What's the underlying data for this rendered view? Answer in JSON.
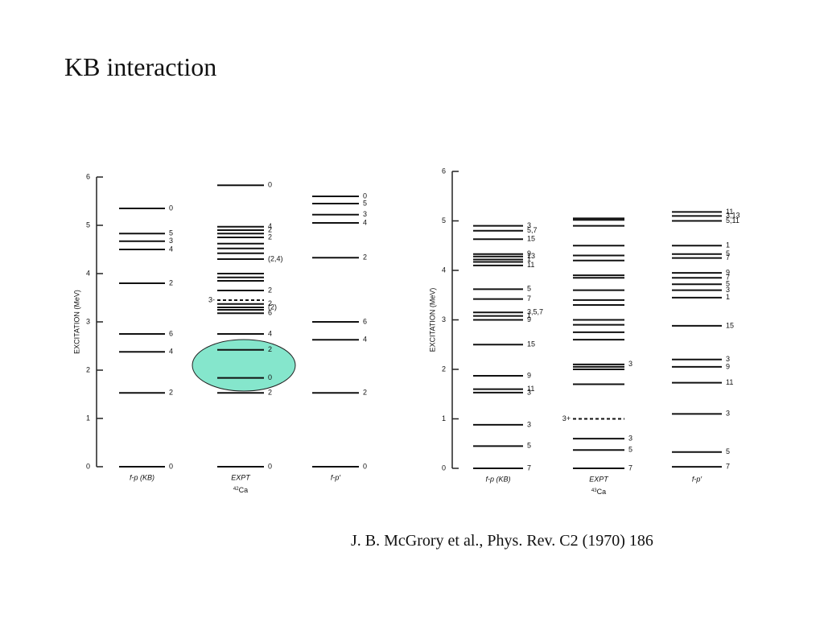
{
  "title": "KB interaction",
  "citation": "J. B. McGrory et al., Phys. Rev. C2 (1970) 186",
  "panels": [
    {
      "ylabel": "EXCITATION (MeV)",
      "ylim": [
        0,
        6
      ],
      "yticks": [
        0,
        1,
        2,
        3,
        4,
        5,
        6
      ],
      "nucleus": {
        "mass": "42",
        "symbol": "Ca"
      },
      "columns": [
        {
          "name": "f-p (KB)",
          "levels": [
            {
              "energy": 0,
              "label": "0"
            },
            {
              "energy": 1.53,
              "label": "2"
            },
            {
              "energy": 2.38,
              "label": "4"
            },
            {
              "energy": 2.75,
              "label": "6"
            },
            {
              "energy": 3.8,
              "label": "2"
            },
            {
              "energy": 4.5,
              "label": "4"
            },
            {
              "energy": 4.67,
              "label": "3"
            },
            {
              "energy": 4.83,
              "label": "5"
            },
            {
              "energy": 5.35,
              "label": "0"
            }
          ]
        },
        {
          "name": "EXPT",
          "levels": [
            {
              "energy": 0,
              "label": "0"
            },
            {
              "energy": 1.53,
              "label": "2"
            },
            {
              "energy": 1.84,
              "label": "0"
            },
            {
              "energy": 2.42,
              "label": "2"
            },
            {
              "energy": 2.75,
              "label": "4"
            },
            {
              "energy": 3.18,
              "label": "6"
            },
            {
              "energy": 3.25
            },
            {
              "energy": 3.3,
              "label": "(2)"
            },
            {
              "energy": 3.37,
              "label": "2"
            },
            {
              "energy": 3.45,
              "label": "3-",
              "dashed": true
            },
            {
              "energy": 3.65,
              "label": "2"
            },
            {
              "energy": 3.85
            },
            {
              "energy": 3.92
            },
            {
              "energy": 4.0
            },
            {
              "energy": 4.3,
              "label": "(2,4)"
            },
            {
              "energy": 4.42
            },
            {
              "energy": 4.52
            },
            {
              "energy": 4.62
            },
            {
              "energy": 4.75,
              "label": "2"
            },
            {
              "energy": 4.83
            },
            {
              "energy": 4.9,
              "label": "2"
            },
            {
              "energy": 4.97,
              "label": "4"
            },
            {
              "energy": 5.83,
              "label": "0"
            }
          ]
        },
        {
          "name": "f-p′",
          "levels": [
            {
              "energy": 0,
              "label": "0"
            },
            {
              "energy": 1.53,
              "label": "2"
            },
            {
              "energy": 2.63,
              "label": "4"
            },
            {
              "energy": 3.0,
              "label": "6"
            },
            {
              "energy": 4.33,
              "label": "2"
            },
            {
              "energy": 5.05,
              "label": "4"
            },
            {
              "energy": 5.22,
              "label": "3"
            },
            {
              "energy": 5.45,
              "label": "5"
            },
            {
              "energy": 5.6,
              "label": "0"
            }
          ]
        }
      ]
    },
    {
      "ylabel": "EXCITATION (MeV)",
      "ylim": [
        0,
        6
      ],
      "yticks": [
        0,
        1,
        2,
        3,
        4,
        5,
        6
      ],
      "nucleus": {
        "mass": "43",
        "symbol": "Ca"
      },
      "columns": [
        {
          "name": "f-p (KB)",
          "levels": [
            {
              "energy": 0,
              "label": "7"
            },
            {
              "energy": 0.45,
              "label": "5"
            },
            {
              "energy": 0.88,
              "label": "3"
            },
            {
              "energy": 1.53,
              "label": "3"
            },
            {
              "energy": 1.6,
              "label": "11"
            },
            {
              "energy": 1.87,
              "label": "9"
            },
            {
              "energy": 2.5,
              "label": "15"
            },
            {
              "energy": 3.0,
              "label": "9"
            },
            {
              "energy": 3.08,
              "label": "1"
            },
            {
              "energy": 3.15,
              "label": "3,5,7"
            },
            {
              "energy": 3.42,
              "label": "7"
            },
            {
              "energy": 3.62,
              "label": "5"
            },
            {
              "energy": 4.1,
              "label": "11"
            },
            {
              "energy": 4.17
            },
            {
              "energy": 4.22,
              "label": "1"
            },
            {
              "energy": 4.28,
              "label": "13"
            },
            {
              "energy": 4.33,
              "label": "9"
            },
            {
              "energy": 4.63,
              "label": "15"
            },
            {
              "energy": 4.8,
              "label": "5,7"
            },
            {
              "energy": 4.9,
              "label": "3"
            }
          ]
        },
        {
          "name": "EXPT",
          "levels": [
            {
              "energy": 0,
              "label": "7"
            },
            {
              "energy": 0.37,
              "label": "5"
            },
            {
              "energy": 0.6,
              "label": "3"
            },
            {
              "energy": 1.0,
              "label": "3+",
              "dashed": true
            },
            {
              "energy": 1.7
            },
            {
              "energy": 2.0
            },
            {
              "energy": 2.05
            },
            {
              "energy": 2.1,
              "label": "3"
            },
            {
              "energy": 2.6
            },
            {
              "energy": 2.75
            },
            {
              "energy": 2.9
            },
            {
              "energy": 3.0
            },
            {
              "energy": 3.3
            },
            {
              "energy": 3.4
            },
            {
              "energy": 3.6
            },
            {
              "energy": 3.85
            },
            {
              "energy": 3.9
            },
            {
              "energy": 4.2
            },
            {
              "energy": 4.3
            },
            {
              "energy": 4.5
            },
            {
              "energy": 4.9
            },
            {
              "energy": 5.02
            },
            {
              "energy": 5.05
            }
          ]
        },
        {
          "name": "f-p′",
          "levels": [
            {
              "energy": 0.03,
              "label": "7"
            },
            {
              "energy": 0.33,
              "label": "5"
            },
            {
              "energy": 1.1,
              "label": "3"
            },
            {
              "energy": 1.73,
              "label": "11"
            },
            {
              "energy": 2.05,
              "label": "9"
            },
            {
              "energy": 2.2,
              "label": "3"
            },
            {
              "energy": 2.88,
              "label": "15"
            },
            {
              "energy": 3.45,
              "label": "1"
            },
            {
              "energy": 3.6,
              "label": "3"
            },
            {
              "energy": 3.72,
              "label": "5"
            },
            {
              "energy": 3.85,
              "label": "7"
            },
            {
              "energy": 3.95,
              "label": "9"
            },
            {
              "energy": 4.25,
              "label": "7"
            },
            {
              "energy": 4.33,
              "label": "5"
            },
            {
              "energy": 4.5,
              "label": "1"
            },
            {
              "energy": 5.0,
              "label": "5,11"
            },
            {
              "energy": 5.1,
              "label": "3,13"
            },
            {
              "energy": 5.18,
              "label": "11"
            }
          ]
        }
      ]
    }
  ]
}
